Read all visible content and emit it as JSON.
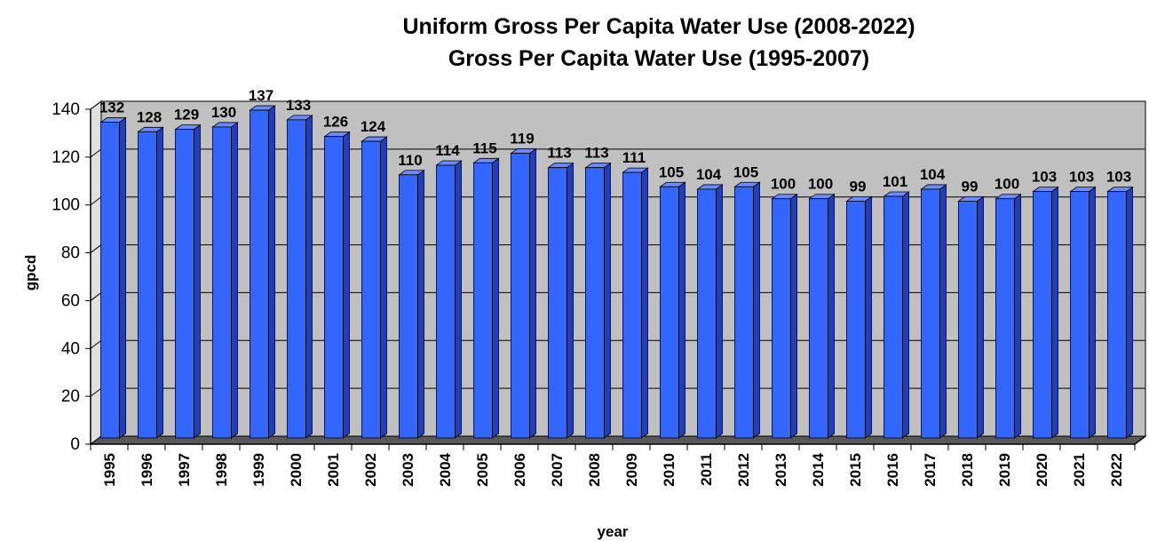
{
  "chart_data": {
    "type": "bar",
    "title": [
      "Uniform Gross Per Capita Water Use (2008-2022)",
      "Gross Per Capita Water Use (1995-2007)"
    ],
    "xlabel": "year",
    "ylabel": "gpcd",
    "ylim": [
      0,
      140
    ],
    "yticks": [
      "0",
      "20",
      "40",
      "60",
      "80",
      "100",
      "120",
      "140"
    ],
    "grid": true,
    "legend": "none",
    "categories": [
      "1995",
      "1996",
      "1997",
      "1998",
      "1999",
      "2000",
      "2001",
      "2002",
      "2003",
      "2004",
      "2005",
      "2006",
      "2007",
      "2008",
      "2009",
      "2010",
      "2011",
      "2012",
      "2013",
      "2014",
      "2015",
      "2016",
      "2017",
      "2018",
      "2019",
      "2020",
      "2021",
      "2022"
    ],
    "values": [
      132,
      128,
      129,
      130,
      137,
      133,
      126,
      124,
      110,
      114,
      115,
      119,
      113,
      113,
      111,
      105,
      104,
      105,
      100,
      100,
      99,
      101,
      104,
      99,
      100,
      103,
      103,
      103
    ],
    "colors": {
      "bar_front": "#3366ff",
      "bar_side": "#1f3fbf",
      "bar_top": "#6b8cff",
      "back_wall": "#c0c0c0",
      "floor": "#595959"
    }
  }
}
